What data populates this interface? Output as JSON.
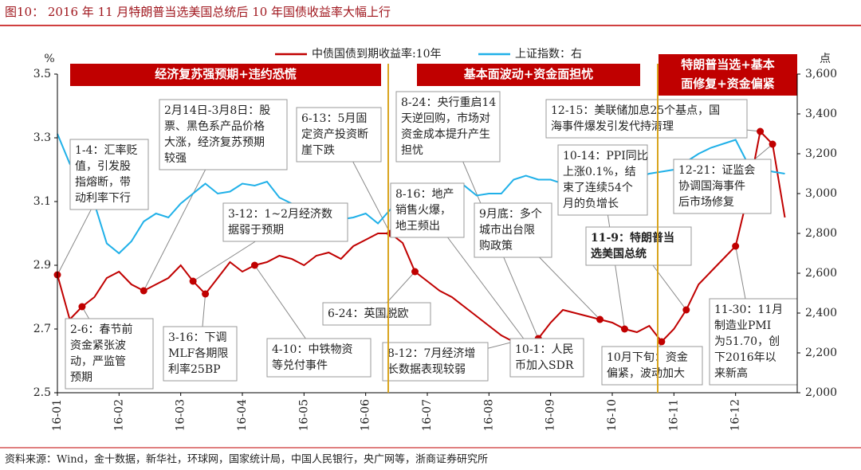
{
  "chart_data": {
    "type": "line",
    "title": "图10：  2016 年 11 月特朗普当选美国总统后 10 年国债收益率大幅上行",
    "source": "资料来源：Wind，金十数据，新华社，环球网，国家统计局，中国人民银行，央广网等，浙商证券研究所",
    "y_unit": "%",
    "y2_unit": "点",
    "categories": [
      "16-01",
      null,
      null,
      null,
      null,
      "16-02",
      null,
      null,
      null,
      null,
      "16-03",
      null,
      null,
      null,
      null,
      "16-04",
      null,
      null,
      null,
      null,
      "16-05",
      null,
      null,
      null,
      null,
      "16-06",
      null,
      null,
      null,
      null,
      "16-07",
      null,
      null,
      null,
      null,
      "16-08",
      null,
      null,
      null,
      null,
      "16-09",
      null,
      null,
      null,
      null,
      "16-10",
      null,
      null,
      null,
      null,
      "16-11",
      null,
      null,
      null,
      null,
      "16-12",
      null,
      null,
      null,
      null
    ],
    "series": [
      {
        "name": "中债国债到期收益率:10年",
        "color": "#c00000",
        "values": [
          2.87,
          2.73,
          2.77,
          2.8,
          2.86,
          2.88,
          2.84,
          2.82,
          2.84,
          2.86,
          2.9,
          2.85,
          2.81,
          2.86,
          2.91,
          2.88,
          2.9,
          2.91,
          2.93,
          2.92,
          2.9,
          2.93,
          2.94,
          2.92,
          2.96,
          2.98,
          3.0,
          3.0,
          2.97,
          2.88,
          2.85,
          2.82,
          2.8,
          2.77,
          2.74,
          2.71,
          2.68,
          2.66,
          2.66,
          2.67,
          2.72,
          2.76,
          2.75,
          2.74,
          2.73,
          2.72,
          2.7,
          2.69,
          2.71,
          2.66,
          2.7,
          2.76,
          2.84,
          2.88,
          2.92,
          2.96,
          3.12,
          3.32,
          3.28,
          3.05
        ]
      },
      {
        "name": "上证指数：右",
        "color": "#1fb0e8",
        "axis": "y2",
        "values": [
          3300,
          3150,
          3050,
          2950,
          2750,
          2700,
          2760,
          2860,
          2900,
          2880,
          2950,
          3000,
          3050,
          3000,
          3010,
          3050,
          3040,
          3060,
          2980,
          2950,
          2920,
          2850,
          2830,
          2870,
          2880,
          2900,
          2850,
          2920,
          2930,
          2940,
          2990,
          3030,
          3050,
          3040,
          2990,
          3000,
          3000,
          3070,
          3090,
          3070,
          3070,
          3050,
          3010,
          3000,
          3000,
          3030,
          3060,
          3080,
          3100,
          3110,
          3120,
          3160,
          3200,
          3230,
          3250,
          3270,
          3150,
          3130,
          3110,
          3100
        ]
      }
    ],
    "ylim": [
      2.5,
      3.5
    ],
    "yticks": [
      2.5,
      2.7,
      2.9,
      3.1,
      3.3,
      3.5
    ],
    "y2lim": [
      2000,
      3600
    ],
    "y2ticks": [
      {
        "value": 2000,
        "label": "2,000"
      },
      {
        "value": 2200,
        "label": "2,200"
      },
      {
        "value": 2400,
        "label": "2,400"
      },
      {
        "value": 2600,
        "label": "2,600"
      },
      {
        "value": 2800,
        "label": "2,800"
      },
      {
        "value": 3000,
        "label": "3,000"
      },
      {
        "value": 3200,
        "label": "3,200"
      },
      {
        "value": 3400,
        "label": "3,400"
      },
      {
        "value": 3600,
        "label": "3,600"
      }
    ],
    "grid": false,
    "banners": [
      {
        "lines": [
          "经济复苏强预期+违约恐慌"
        ]
      },
      {
        "lines": [
          "基本面波动+资金面担忧"
        ]
      },
      {
        "lines": [
          "特朗普当选+基本",
          "面修复+资金偏紧"
        ]
      }
    ],
    "annotations": [
      {
        "lines": [
          "1-4：汇率贬",
          "值，引发股",
          "指熔断，带",
          "动利率下行"
        ]
      },
      {
        "lines": [
          "2月14日-3月8日：股",
          "票、黑色系产品价格",
          "大涨，经济复苏预期",
          "较强"
        ]
      },
      {
        "lines": [
          "3-12：1~2月经济数",
          "据弱于预期"
        ]
      },
      {
        "lines": [
          "6-13：5月固",
          "定资产投资断",
          "崖下跌"
        ]
      },
      {
        "lines": [
          "8-24：央行重启14",
          "天逆回购，市场对",
          "资金成本提升产生",
          "担忧"
        ]
      },
      {
        "lines": [
          "12-15：美联储加息25个基点，国",
          "海事件爆发引发代持清理"
        ]
      },
      {
        "lines": [
          "10-14：PPI同比",
          "上涨0.1%，结",
          "束了连续54个",
          "月的负增长"
        ]
      },
      {
        "lines": [
          "12-21：证监会",
          "协调国海事件",
          "后市场修复"
        ]
      },
      {
        "lines": [
          "8-16：地产",
          "销售火爆，",
          "地王频出"
        ]
      },
      {
        "lines": [
          "9月底：多个",
          "城市出台限",
          "购政策"
        ]
      },
      {
        "lines": [
          "11-9：特朗普当",
          "选美国总统"
        ]
      },
      {
        "lines": [
          "11-30：11月",
          "制造业PMI",
          "为51.70，创",
          "下2016年以",
          "来新高"
        ]
      },
      {
        "lines": [
          "2-6：春节前",
          "资金紧张波",
          "动，严监管",
          "预期"
        ]
      },
      {
        "lines": [
          "3-16：下调",
          "MLF各期限",
          "利率25BP"
        ]
      },
      {
        "lines": [
          "4-10：中铁物资",
          "等兑付事件"
        ]
      },
      {
        "lines": [
          "6-24：英国脱欧"
        ]
      },
      {
        "lines": [
          "8-12：7月经济增",
          "长数据表现较弱"
        ]
      },
      {
        "lines": [
          "10-1：人民",
          "币加入SDR"
        ]
      },
      {
        "lines": [
          "10月下旬：资金",
          "偏紧，波动加大"
        ]
      }
    ]
  }
}
